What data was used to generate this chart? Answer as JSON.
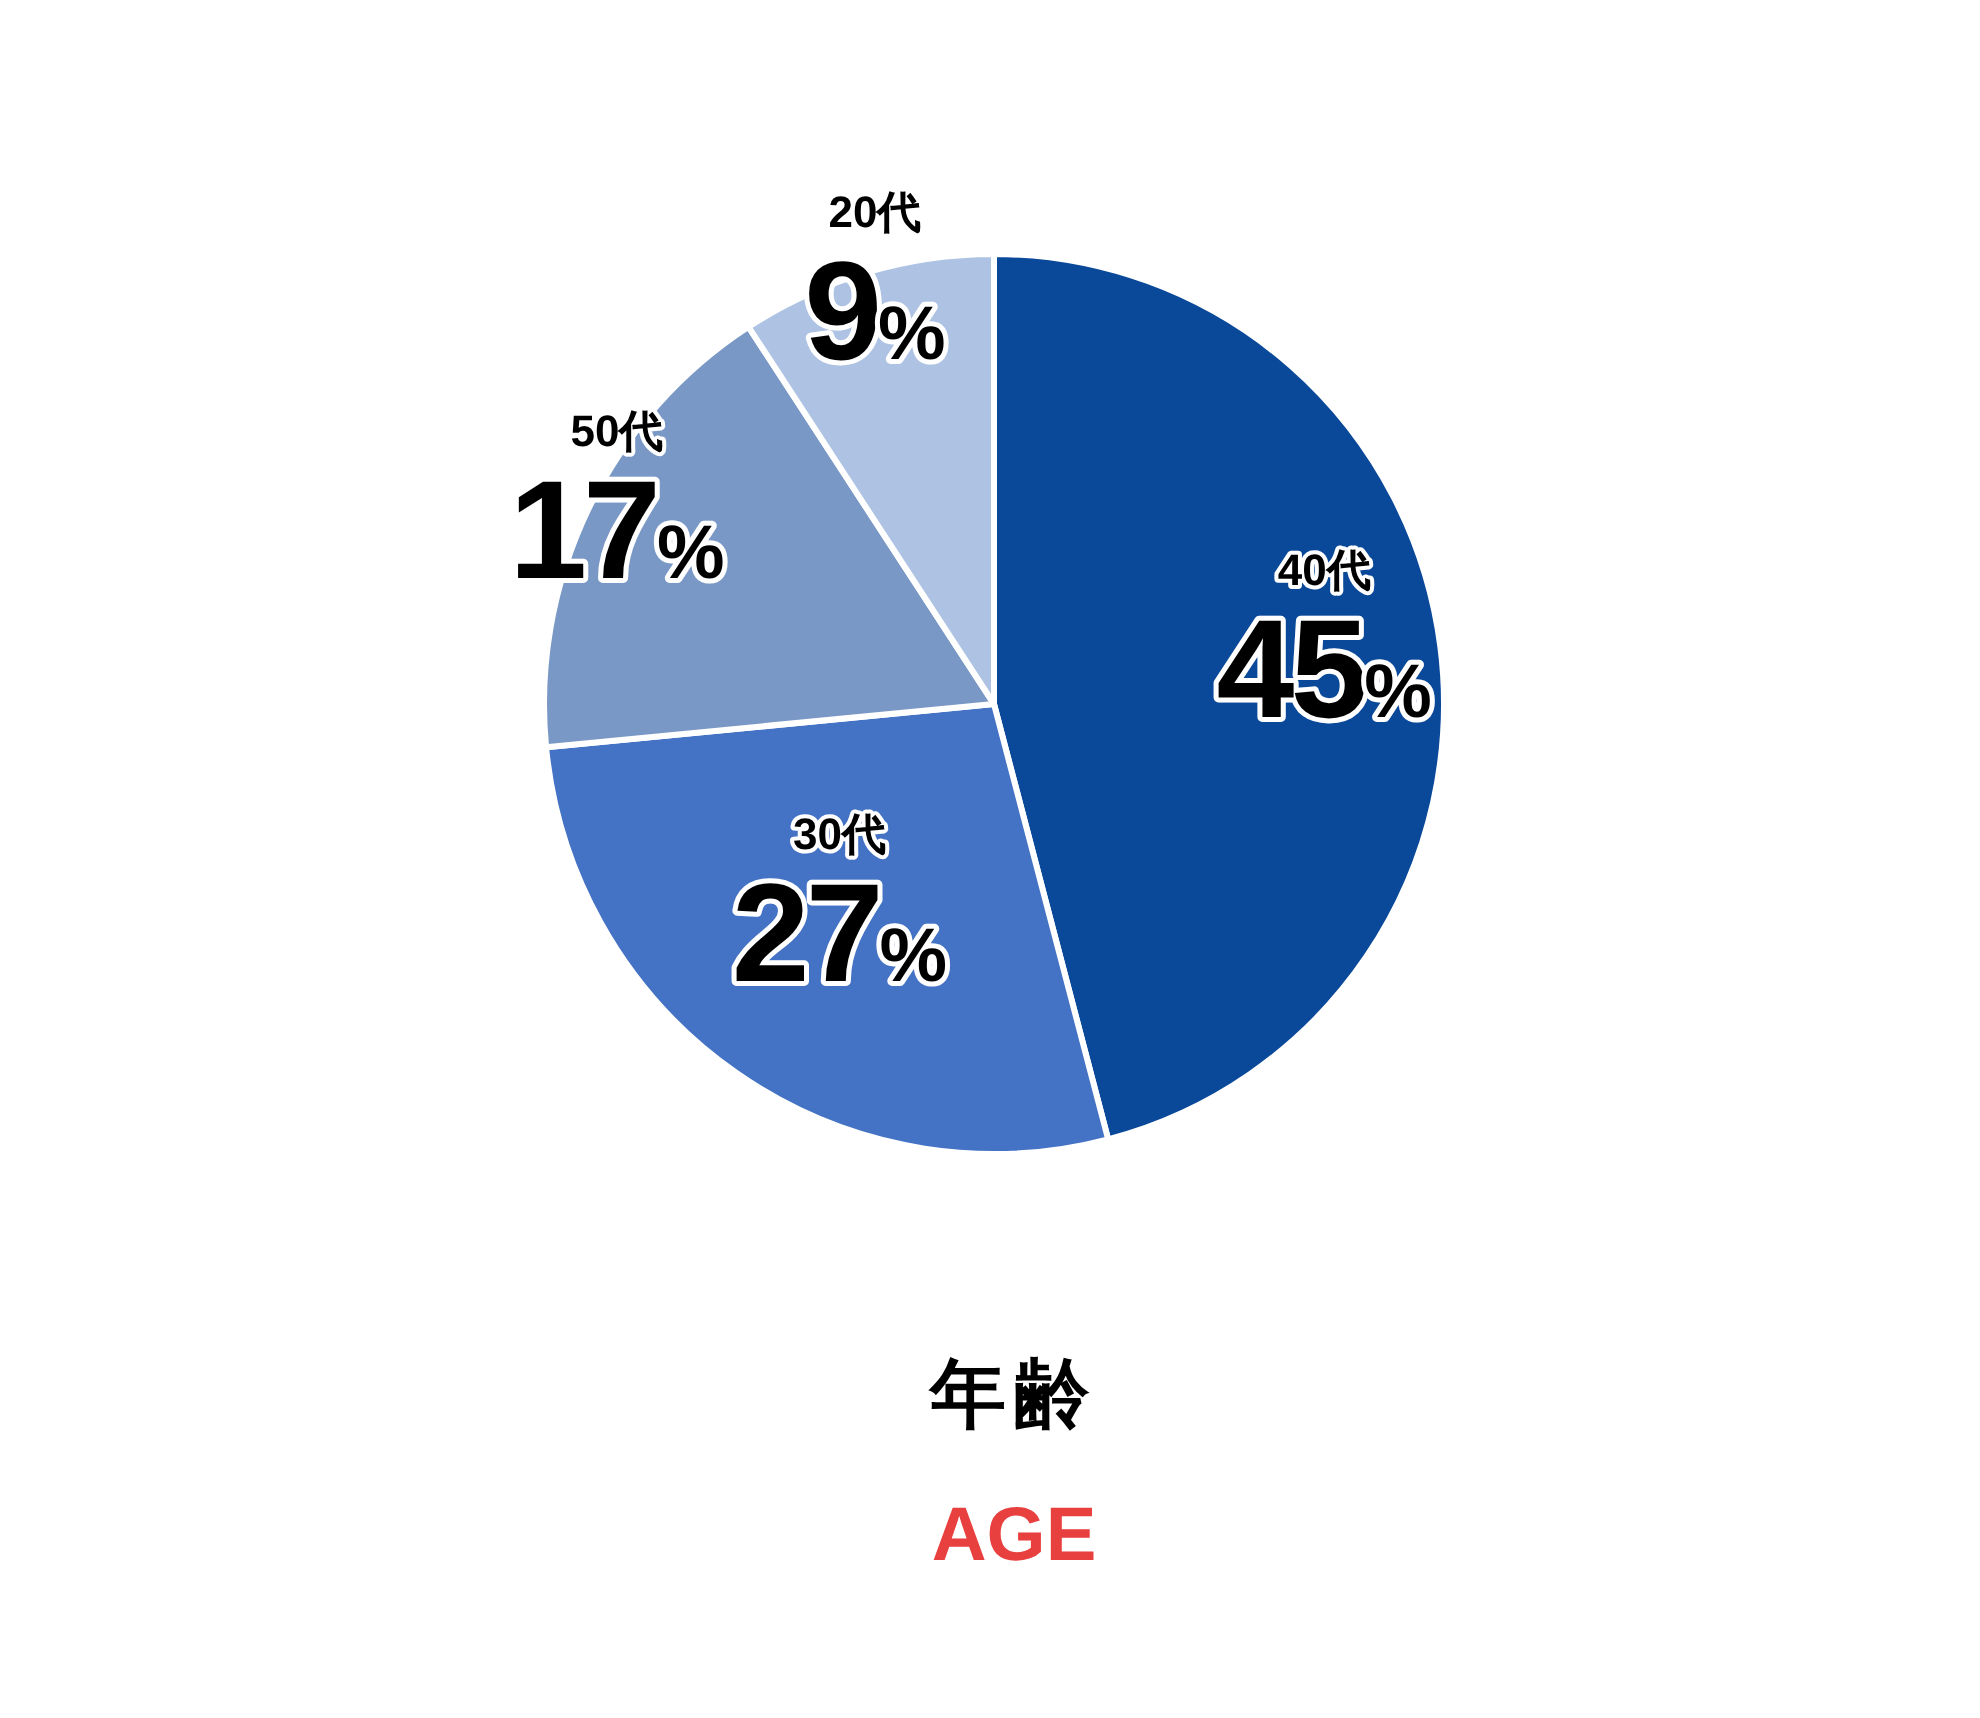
{
  "chart_data": {
    "type": "pie",
    "title": "年齢",
    "subtitle": "AGE",
    "categories": [
      "40代",
      "30代",
      "50代",
      "20代"
    ],
    "values": [
      45,
      27,
      17,
      9
    ],
    "value_labels": [
      "45%",
      "27%",
      "17%",
      "9%"
    ],
    "colors": [
      "#0a4899",
      "#4472c4",
      "#7a98c6",
      "#aec3e4"
    ]
  }
}
